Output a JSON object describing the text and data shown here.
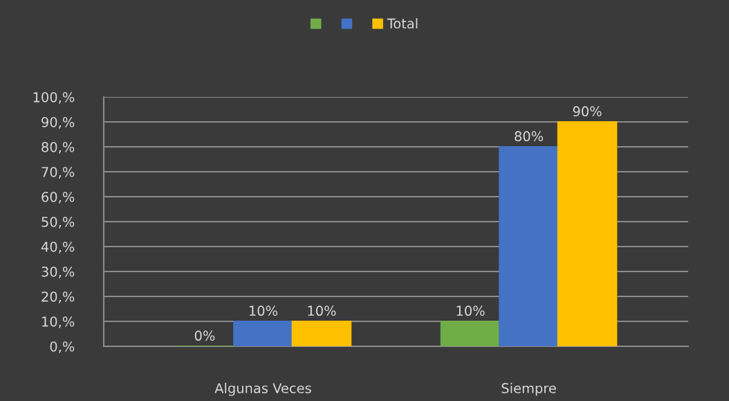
{
  "chart_data": {
    "type": "bar",
    "categories": [
      "Algunas Veces",
      "Siempre"
    ],
    "series": [
      {
        "color": "#70ad47",
        "values": [
          0,
          10
        ],
        "value_labels": [
          "0%",
          "10%"
        ]
      },
      {
        "color": "#4472c4",
        "values": [
          10,
          80
        ],
        "value_labels": [
          "10%",
          "80%"
        ]
      },
      {
        "name": "Total",
        "color": "#ffc000",
        "values": [
          10,
          90
        ],
        "value_labels": [
          "10%",
          "90%"
        ]
      }
    ],
    "ylim": [
      0,
      100
    ],
    "yticks": [
      {
        "value": 0,
        "label": "0,%"
      },
      {
        "value": 10,
        "label": "10,%"
      },
      {
        "value": 20,
        "label": "20,%"
      },
      {
        "value": 30,
        "label": "30,%"
      },
      {
        "value": 40,
        "label": "40,%"
      },
      {
        "value": 50,
        "label": "50,%"
      },
      {
        "value": 60,
        "label": "60,%"
      },
      {
        "value": 70,
        "label": "70,%"
      },
      {
        "value": 80,
        "label": "80,%"
      },
      {
        "value": 90,
        "label": "90,%"
      },
      {
        "value": 100,
        "label": "100,%"
      }
    ],
    "grid": "y",
    "legend": "top"
  }
}
